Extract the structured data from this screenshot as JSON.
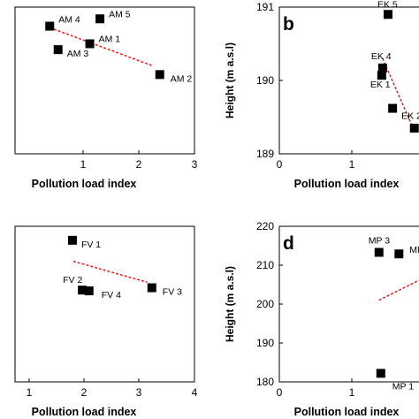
{
  "chart_data": [
    {
      "panel": "a",
      "type": "scatter",
      "panel_label": "",
      "xlabel": "Pollution load index",
      "ylabel": "",
      "xlim": [
        0,
        3
      ],
      "xticks": [
        "1",
        "2",
        "3"
      ],
      "ylim": [
        0,
        10
      ],
      "yticks": [],
      "marker_color": "#000000",
      "trend_color": "#e0201b",
      "points": [
        {
          "x": 0.58,
          "y": 8.7,
          "label": "AM 4"
        },
        {
          "x": 1.42,
          "y": 9.2,
          "label": "AM 5"
        },
        {
          "x": 1.25,
          "y": 7.5,
          "label": "AM 1"
        },
        {
          "x": 0.72,
          "y": 7.1,
          "label": "AM 3"
        },
        {
          "x": 2.42,
          "y": 5.4,
          "label": "AM 2"
        }
      ],
      "trendline": {
        "x": [
          0.58,
          2.3
        ],
        "y": [
          8.6,
          6.0
        ]
      }
    },
    {
      "panel": "b",
      "type": "scatter",
      "panel_label": "b",
      "xlabel": "Pollution load index",
      "ylabel": "Height (m a.s.l)",
      "xlim": [
        0,
        1.6
      ],
      "xticks": [
        "0",
        "1"
      ],
      "ylim": [
        189,
        191
      ],
      "yticks": [
        "189",
        "190",
        "191"
      ],
      "marker_color": "#000000",
      "trend_color": "#e0201b",
      "points": [
        {
          "x": 1.2,
          "y": 190.9,
          "label": "EK 5"
        },
        {
          "x": 1.14,
          "y": 190.17,
          "label": "EK 4"
        },
        {
          "x": 1.13,
          "y": 190.07,
          "label": "EK 1"
        },
        {
          "x": 1.25,
          "y": 189.62,
          "label": "EK 2"
        },
        {
          "x": 1.49,
          "y": 189.35,
          "label": ""
        }
      ],
      "trendline": {
        "x": [
          1.14,
          1.47
        ],
        "y": [
          190.3,
          189.37
        ]
      }
    },
    {
      "panel": "c",
      "type": "scatter",
      "panel_label": "",
      "xlabel": "Pollution load index",
      "ylabel": "",
      "xlim": [
        0,
        4
      ],
      "xticks": [
        "1",
        "2",
        "3",
        "4"
      ],
      "ylim": [
        0,
        10
      ],
      "yticks": [],
      "marker_color": "#000000",
      "trend_color": "#e0201b",
      "points": [
        {
          "x": 1.28,
          "y": 9.1,
          "label": "FV 1"
        },
        {
          "x": 1.5,
          "y": 5.9,
          "label": "FV 2"
        },
        {
          "x": 1.65,
          "y": 5.85,
          "label": "FV 4"
        },
        {
          "x": 3.05,
          "y": 6.05,
          "label": "FV 3"
        }
      ],
      "trendline": {
        "x": [
          1.3,
          2.95
        ],
        "y": [
          7.75,
          6.4
        ]
      }
    },
    {
      "panel": "d",
      "type": "scatter",
      "panel_label": "d",
      "xlabel": "Pollution load index",
      "ylabel": "Height (m a.s.l)",
      "xlim": [
        0,
        1.6
      ],
      "xticks": [
        "0",
        "1"
      ],
      "ylim": [
        180,
        220
      ],
      "yticks": [
        "180",
        "190",
        "200",
        "210",
        "220"
      ],
      "marker_color": "#000000",
      "trend_color": "#e0201b",
      "points": [
        {
          "x": 1.1,
          "y": 213.3,
          "label": "MP 3"
        },
        {
          "x": 1.32,
          "y": 212.9,
          "label": "MP 2"
        },
        {
          "x": 1.12,
          "y": 182.2,
          "label": "MP 1"
        }
      ],
      "trendline": {
        "x": [
          1.1,
          1.6
        ],
        "y": [
          201.0,
          206.8
        ]
      }
    }
  ]
}
